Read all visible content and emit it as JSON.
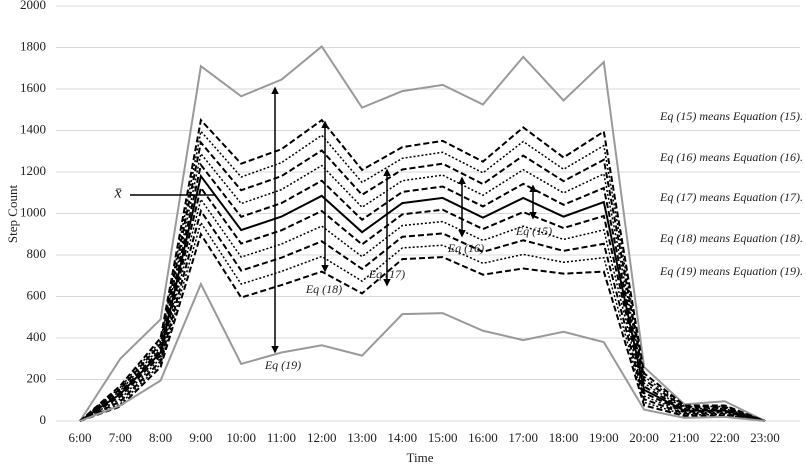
{
  "chart_data": {
    "type": "line",
    "x_label": "Time",
    "y_label": "Step Count",
    "categories": [
      "6:00",
      "7:00",
      "8:00",
      "9:00",
      "10:00",
      "11:00",
      "12:00",
      "13:00",
      "14:00",
      "15:00",
      "16:00",
      "17:00",
      "18:00",
      "19:00",
      "20:00",
      "21:00",
      "22:00",
      "23:00"
    ],
    "ylim": [
      0,
      2000
    ],
    "yticks": [
      0,
      200,
      400,
      600,
      800,
      1000,
      1200,
      1400,
      1600,
      1800,
      2000
    ],
    "grid": true,
    "series": [
      {
        "color": "#999999",
        "dash": "solid",
        "width": 2,
        "values": [
          0,
          300,
          490,
          1710,
          1565,
          1645,
          1805,
          1510,
          1590,
          1620,
          1525,
          1755,
          1545,
          1730,
          260,
          80,
          95,
          0
        ]
      },
      {
        "color": "#000000",
        "dash": "dashed",
        "width": 2,
        "values": [
          0,
          170,
          400,
          1450,
          1240,
          1310,
          1450,
          1210,
          1320,
          1350,
          1250,
          1415,
          1270,
          1395,
          230,
          75,
          75,
          0
        ]
      },
      {
        "color": "#000000",
        "dash": "dotted",
        "width": 1.5,
        "values": [
          0,
          162,
          386,
          1396,
          1176,
          1245,
          1377,
          1150,
          1266,
          1295,
          1196,
          1347,
          1213,
          1327,
          214,
          70,
          70,
          0
        ]
      },
      {
        "color": "#000000",
        "dash": "dashed",
        "width": 2,
        "values": [
          0,
          154,
          372,
          1342,
          1112,
          1180,
          1304,
          1090,
          1212,
          1240,
          1142,
          1279,
          1156,
          1259,
          198,
          65,
          65,
          0
        ]
      },
      {
        "color": "#000000",
        "dash": "dotted",
        "width": 1.5,
        "values": [
          0,
          146,
          358,
          1288,
          1048,
          1115,
          1231,
          1030,
          1158,
          1185,
          1088,
          1211,
          1099,
          1191,
          182,
          60,
          60,
          0
        ]
      },
      {
        "color": "#000000",
        "dash": "dashed",
        "width": 2,
        "values": [
          0,
          138,
          344,
          1234,
          984,
          1050,
          1158,
          970,
          1104,
          1130,
          1034,
          1143,
          1042,
          1123,
          166,
          55,
          55,
          0
        ]
      },
      {
        "color": "#000000",
        "dash": "solid",
        "width": 2,
        "values": [
          0,
          130,
          330,
          1180,
          920,
          985,
          1085,
          910,
          1050,
          1075,
          980,
          1075,
          985,
          1055,
          150,
          50,
          50,
          0
        ]
      },
      {
        "color": "#000000",
        "dash": "dashed",
        "width": 2,
        "values": [
          0,
          118,
          316,
          1124,
          855,
          919,
          1012,
          851,
          996,
          1018,
          925,
          1007,
          930,
          988,
          135,
          45,
          45,
          0
        ]
      },
      {
        "color": "#000000",
        "dash": "dotted",
        "width": 1.5,
        "values": [
          0,
          106,
          302,
          1068,
          790,
          853,
          939,
          792,
          942,
          961,
          870,
          939,
          875,
          921,
          120,
          40,
          40,
          0
        ]
      },
      {
        "color": "#000000",
        "dash": "dashed",
        "width": 2,
        "values": [
          0,
          94,
          288,
          1012,
          725,
          787,
          866,
          733,
          888,
          904,
          815,
          871,
          820,
          854,
          105,
          35,
          35,
          0
        ]
      },
      {
        "color": "#000000",
        "dash": "dotted",
        "width": 1.5,
        "values": [
          0,
          82,
          274,
          956,
          660,
          721,
          793,
          674,
          834,
          847,
          760,
          803,
          765,
          787,
          90,
          30,
          30,
          0
        ]
      },
      {
        "color": "#000000",
        "dash": "dashed",
        "width": 2,
        "values": [
          0,
          70,
          260,
          900,
          595,
          655,
          720,
          615,
          780,
          790,
          705,
          735,
          710,
          720,
          75,
          25,
          25,
          0
        ]
      },
      {
        "color": "#999999",
        "dash": "solid",
        "width": 2,
        "values": [
          0,
          75,
          195,
          660,
          275,
          330,
          365,
          315,
          515,
          520,
          435,
          390,
          430,
          380,
          55,
          15,
          20,
          0
        ]
      }
    ],
    "mean_label": "x̄",
    "arrow_labels": [
      "Eq (15)",
      "Eq (16)",
      "Eq (17)",
      "Eq (18)",
      "Eq (19)"
    ],
    "notes": [
      "Eq (15) means Equation (15).",
      "Eq (16) means Equation (16).",
      "Eq (17) means Equation (17).",
      "Eq (18) means Equation (18).",
      "Eq (19) means Equation (19)."
    ]
  }
}
